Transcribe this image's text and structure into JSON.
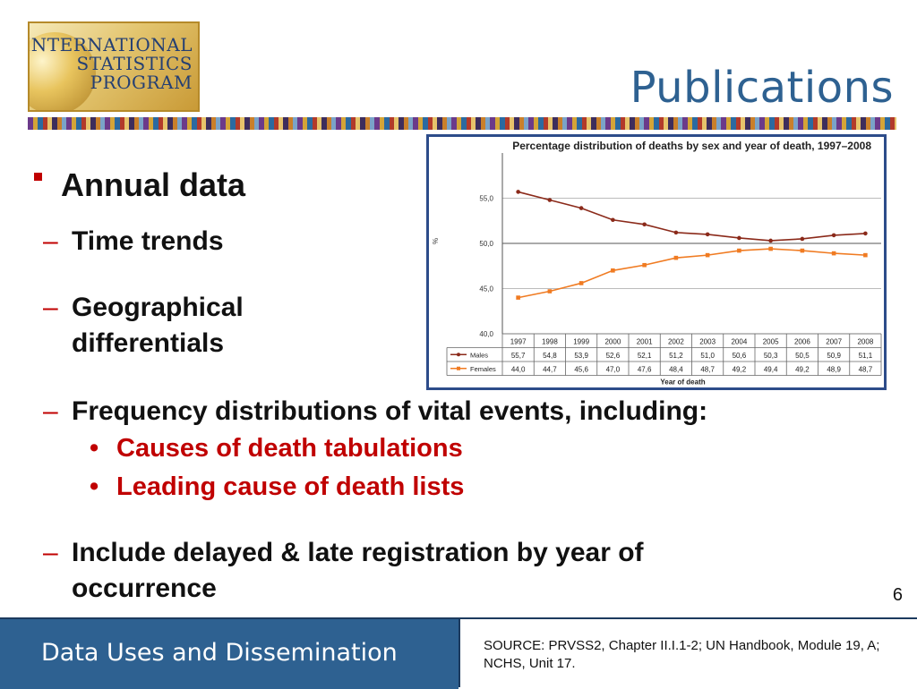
{
  "logo": {
    "line1": "INTERNATIONAL",
    "line2": "STATISTICS",
    "line3": "PROGRAM"
  },
  "slide": {
    "title": "Publications",
    "page_number": "6"
  },
  "bullets": {
    "main": "Annual data",
    "sub1": "Time trends",
    "sub2_line1": "Geographical",
    "sub2_line2": "differentials",
    "sub3": "Frequency distributions of vital events, including:",
    "sub3_items": [
      "Causes of death tabulations",
      "Leading cause of death lists"
    ],
    "sub4_line1": "Include delayed & late registration by year of",
    "sub4_line2": "occurrence",
    "dash": "–",
    "dot": "•"
  },
  "footer": {
    "left": "Data Uses and Dissemination",
    "right": "SOURCE: PRVSS2, Chapter II.I.1-2; UN Handbook, Module 19, A; NCHS, Unit 17."
  },
  "colors": {
    "accent_red": "#c00000",
    "brand_blue": "#2e6191",
    "males": "#8b2a1a",
    "females": "#f07b22"
  },
  "chart_data": {
    "type": "line",
    "title": "Percentage distribution of deaths by sex and year of death, 1997–2008",
    "xlabel": "Year of death",
    "ylabel": "%",
    "x": [
      "1997",
      "1998",
      "1999",
      "2000",
      "2001",
      "2002",
      "2003",
      "2004",
      "2005",
      "2006",
      "2007",
      "2008"
    ],
    "yticks": [
      "40,0",
      "45,0",
      "50,0",
      "55,0"
    ],
    "ylim": [
      40,
      60
    ],
    "series": [
      {
        "name": "Males",
        "values": [
          55.7,
          54.8,
          53.9,
          52.6,
          52.1,
          51.2,
          51.0,
          50.6,
          50.3,
          50.5,
          50.9,
          51.1
        ],
        "labels": [
          "55,7",
          "54,8",
          "53,9",
          "52,6",
          "52,1",
          "51,2",
          "51,0",
          "50,6",
          "50,3",
          "50,5",
          "50,9",
          "51,1"
        ]
      },
      {
        "name": "Females",
        "values": [
          44.0,
          44.7,
          45.6,
          47.0,
          47.6,
          48.4,
          48.7,
          49.2,
          49.4,
          49.2,
          48.9,
          48.7
        ],
        "labels": [
          "44,0",
          "44,7",
          "45,6",
          "47,0",
          "47,6",
          "48,4",
          "48,7",
          "49,2",
          "49,4",
          "49,2",
          "48,9",
          "48,7"
        ]
      }
    ]
  }
}
